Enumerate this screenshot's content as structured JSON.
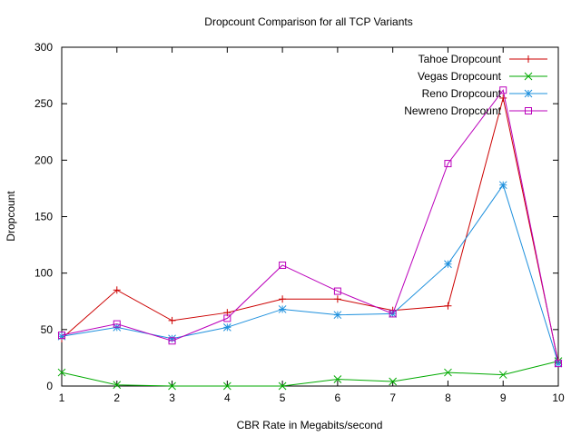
{
  "chart_data": {
    "type": "line",
    "title": "Dropcount Comparison for all TCP Variants",
    "xlabel": "CBR Rate in Megabits/second",
    "ylabel": "Dropcount",
    "x": [
      1,
      2,
      3,
      4,
      5,
      6,
      7,
      8,
      9,
      10
    ],
    "xlim": [
      1,
      10
    ],
    "ylim": [
      0,
      300
    ],
    "xticks": [
      "1",
      "2",
      "3",
      "4",
      "5",
      "6",
      "7",
      "8",
      "9",
      "10"
    ],
    "yticks": [
      "0",
      "50",
      "100",
      "150",
      "200",
      "250",
      "300"
    ],
    "grid": false,
    "legend_position": "top-right",
    "series": [
      {
        "name": "Tahoe Dropcount",
        "color": "#cc0000",
        "marker": "plus",
        "values": [
          42,
          85,
          58,
          65,
          77,
          77,
          67,
          71,
          255,
          21
        ]
      },
      {
        "name": "Vegas Dropcount",
        "color": "#00aa00",
        "marker": "cross",
        "values": [
          12,
          1,
          0,
          0,
          0,
          6,
          4,
          12,
          10,
          22
        ]
      },
      {
        "name": "Reno Dropcount",
        "color": "#1e90dd",
        "marker": "star",
        "values": [
          44,
          52,
          42,
          52,
          68,
          63,
          64,
          108,
          178,
          20
        ]
      },
      {
        "name": "Newreno Dropcount",
        "color": "#bb00bb",
        "marker": "square",
        "values": [
          45,
          55,
          40,
          60,
          107,
          84,
          64,
          197,
          262,
          20
        ]
      }
    ]
  }
}
